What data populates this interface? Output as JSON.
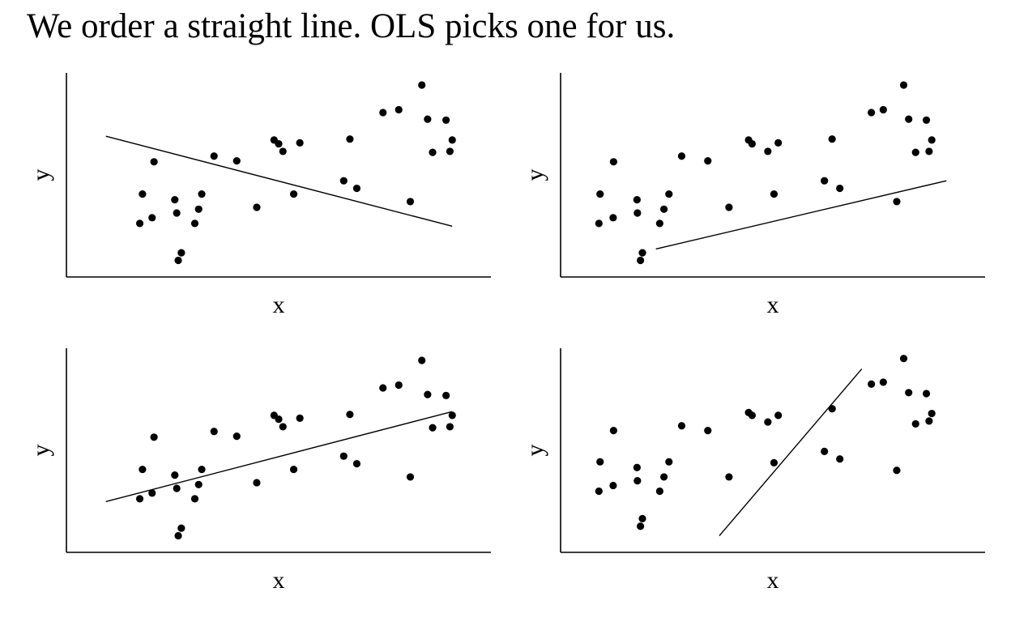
{
  "title": "We order a straight line. OLS picks one for us.",
  "chart_data": [
    {
      "type": "scatter",
      "xlabel": "x",
      "ylabel": "y",
      "xlim": [
        0,
        10
      ],
      "ylim": [
        0,
        10
      ],
      "points": {
        "x": [
          1.38,
          1.45,
          1.7,
          1.75,
          2.29,
          2.34,
          2.38,
          2.46,
          2.81,
          2.91,
          2.99,
          3.31,
          3.9,
          4.42,
          4.87,
          4.99,
          5.1,
          5.38,
          5.54,
          6.68,
          6.84,
          7.02,
          7.7,
          8.11,
          8.41,
          8.71,
          8.86,
          8.99,
          9.34,
          9.44,
          9.5
        ],
        "y": [
          2.4,
          3.95,
          2.7,
          5.65,
          3.65,
          2.95,
          0.45,
          0.85,
          2.4,
          3.15,
          3.95,
          5.95,
          5.7,
          3.25,
          6.8,
          6.6,
          6.2,
          3.95,
          6.65,
          4.65,
          6.85,
          4.25,
          8.25,
          8.4,
          3.55,
          9.7,
          7.9,
          6.15,
          7.85,
          6.2,
          6.8
        ]
      },
      "fit_line": {
        "x": [
          0.5,
          9.5
        ],
        "y": [
          7.0,
          2.25
        ]
      }
    },
    {
      "type": "scatter",
      "xlabel": "x",
      "ylabel": "y",
      "xlim": [
        0,
        10
      ],
      "ylim": [
        0,
        10
      ],
      "points": {
        "x": [
          0.47,
          0.5,
          0.84,
          0.85,
          1.46,
          1.47,
          1.55,
          1.6,
          2.05,
          2.16,
          2.29,
          2.62,
          3.3,
          3.85,
          4.36,
          4.45,
          4.86,
          5.02,
          5.13,
          6.33,
          6.53,
          6.73,
          7.55,
          7.86,
          8.21,
          8.39,
          8.52,
          8.7,
          8.98,
          9.05,
          9.12
        ],
        "y": [
          2.4,
          3.95,
          2.7,
          5.65,
          3.65,
          2.95,
          0.45,
          0.85,
          2.4,
          3.15,
          3.95,
          5.95,
          5.7,
          3.25,
          6.8,
          6.6,
          6.2,
          3.95,
          6.65,
          4.65,
          6.85,
          4.25,
          8.25,
          8.4,
          3.55,
          9.7,
          7.9,
          6.15,
          7.85,
          6.2,
          6.8
        ]
      },
      "fit_line": {
        "x": [
          1.95,
          9.5
        ],
        "y": [
          1.05,
          4.65
        ]
      }
    },
    {
      "type": "scatter",
      "xlabel": "x",
      "ylabel": "y",
      "xlim": [
        0,
        10
      ],
      "ylim": [
        0,
        10
      ],
      "points": {
        "x": [
          1.38,
          1.45,
          1.7,
          1.75,
          2.29,
          2.34,
          2.38,
          2.46,
          2.81,
          2.91,
          2.99,
          3.31,
          3.9,
          4.42,
          4.87,
          4.99,
          5.1,
          5.38,
          5.54,
          6.68,
          6.84,
          7.02,
          7.7,
          8.11,
          8.41,
          8.71,
          8.86,
          8.99,
          9.34,
          9.44,
          9.5
        ],
        "y": [
          2.4,
          3.95,
          2.7,
          5.65,
          3.65,
          2.95,
          0.45,
          0.85,
          2.4,
          3.15,
          3.95,
          5.95,
          5.7,
          3.25,
          6.8,
          6.6,
          6.2,
          3.95,
          6.65,
          4.65,
          6.85,
          4.25,
          8.25,
          8.4,
          3.55,
          9.7,
          7.9,
          6.15,
          7.85,
          6.2,
          6.8
        ]
      },
      "fit_line": {
        "x": [
          0.5,
          9.5
        ],
        "y": [
          2.25,
          7.0
        ]
      }
    },
    {
      "type": "scatter",
      "xlabel": "x",
      "ylabel": "y",
      "xlim": [
        0,
        10
      ],
      "ylim": [
        0,
        10
      ],
      "points": {
        "x": [
          0.47,
          0.5,
          0.84,
          0.85,
          1.46,
          1.47,
          1.55,
          1.6,
          2.05,
          2.16,
          2.29,
          2.62,
          3.3,
          3.85,
          4.36,
          4.45,
          4.86,
          5.02,
          5.13,
          6.33,
          6.53,
          6.73,
          7.55,
          7.86,
          8.21,
          8.39,
          8.52,
          8.7,
          8.98,
          9.05,
          9.12
        ],
        "y": [
          2.8,
          4.35,
          3.1,
          6.0,
          4.05,
          3.35,
          0.95,
          1.35,
          2.8,
          3.55,
          4.35,
          6.25,
          6.0,
          3.55,
          6.95,
          6.8,
          6.45,
          4.3,
          6.8,
          4.9,
          7.15,
          4.5,
          8.45,
          8.55,
          3.9,
          9.8,
          8.0,
          6.35,
          7.95,
          6.5,
          6.9
        ]
      },
      "fit_line": {
        "x": [
          3.6,
          7.3
        ],
        "y": [
          0.45,
          9.25
        ]
      }
    }
  ]
}
